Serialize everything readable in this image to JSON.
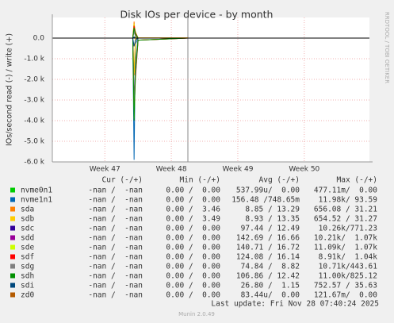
{
  "chart_data": {
    "type": "line",
    "title": "Disk IOs per device - by month",
    "y_label": "IOs/second read (-) / write (+)",
    "side_label": "RRDTOOL / TOBI OETIKER",
    "x": [
      47.42,
      47.44,
      47.46,
      47.5,
      48.25
    ],
    "xlim": [
      46.21,
      50.98
    ],
    "xticks": [
      {
        "value": 47,
        "label": "Week 47"
      },
      {
        "value": 48,
        "label": "Week 48"
      },
      {
        "value": 49,
        "label": "Week 49"
      },
      {
        "value": 50,
        "label": "Week 50"
      }
    ],
    "ylim": [
      -6000,
      1000
    ],
    "yticks": [
      {
        "value": 0,
        "label": "0.0"
      },
      {
        "value": -1000,
        "label": "-1.0 k"
      },
      {
        "value": -2000,
        "label": "-2.0 k"
      },
      {
        "value": -3000,
        "label": "-3.0 k"
      },
      {
        "value": -4000,
        "label": "-4.0 k"
      },
      {
        "value": -5000,
        "label": "-5.0 k"
      },
      {
        "value": -6000,
        "label": "-6.0 k"
      }
    ],
    "grid": true,
    "columns": [
      "Cur (-/+)",
      "Min (-/+)",
      "Avg (-/+)",
      "Max (-/+)"
    ],
    "series": [
      {
        "name": "nvme0n1",
        "color": "#00cc00",
        "values": [
          0,
          0,
          0,
          0,
          0
        ],
        "write": [
          0,
          0,
          0,
          0,
          0
        ],
        "stats": [
          "-nan /  -nan",
          "0.00 /  0.00",
          "537.99u/  0.00",
          "477.11m/  0.00"
        ]
      },
      {
        "name": "nvme1n1",
        "color": "#0066b3",
        "values": [
          0,
          -5900,
          -300,
          0,
          0
        ],
        "write": [
          0,
          60,
          20,
          0,
          0
        ],
        "stats": [
          "-nan /  -nan",
          "0.00 /  0.00",
          "156.48 /748.65m",
          "11.98k/ 93.59"
        ]
      },
      {
        "name": "sda",
        "color": "#ff8000",
        "values": [
          0,
          -1800,
          -50,
          0,
          0
        ],
        "write": [
          0,
          800,
          30,
          10,
          10
        ],
        "stats": [
          "-nan /  -nan",
          "0.00 /  3.46",
          "8.85 / 13.29",
          "656.08 / 31.21"
        ]
      },
      {
        "name": "sdb",
        "color": "#ffcc00",
        "values": [
          0,
          -1700,
          -50,
          0,
          0
        ],
        "write": [
          0,
          700,
          30,
          10,
          10
        ],
        "stats": [
          "-nan /  -nan",
          "0.00 /  3.49",
          "8.93 / 13.35",
          "654.52 / 31.27"
        ]
      },
      {
        "name": "sdc",
        "color": "#330099",
        "values": [
          0,
          -3000,
          -1500,
          0,
          0
        ],
        "write": [
          0,
          500,
          200,
          0,
          0
        ],
        "stats": [
          "-nan /  -nan",
          "0.00 /  0.00",
          "97.44 / 12.49",
          "10.26k/771.23"
        ]
      },
      {
        "name": "sdd",
        "color": "#990099",
        "values": [
          0,
          -3600,
          -2000,
          -100,
          0
        ],
        "write": [
          0,
          600,
          300,
          0,
          0
        ],
        "stats": [
          "-nan /  -nan",
          "0.00 /  0.00",
          "142.69 / 16.66",
          "10.21k/  1.07k"
        ]
      },
      {
        "name": "sde",
        "color": "#ccff00",
        "values": [
          0,
          -3900,
          -1800,
          -100,
          0
        ],
        "write": [
          0,
          650,
          300,
          0,
          0
        ],
        "stats": [
          "-nan /  -nan",
          "0.00 /  0.00",
          "140.71 / 16.72",
          "11.09k/  1.07k"
        ]
      },
      {
        "name": "sdf",
        "color": "#ff0000",
        "values": [
          0,
          -3500,
          -1700,
          -100,
          0
        ],
        "write": [
          0,
          600,
          250,
          0,
          0
        ],
        "stats": [
          "-nan /  -nan",
          "0.00 /  0.00",
          "124.08 / 16.14",
          "8.91k/  1.04k"
        ]
      },
      {
        "name": "sdg",
        "color": "#808080",
        "values": [
          0,
          -3400,
          -1200,
          0,
          0
        ],
        "write": [
          0,
          300,
          100,
          0,
          0
        ],
        "stats": [
          "-nan /  -nan",
          "0.00 /  0.00",
          "74.84 /  8.82",
          "10.71k/443.61"
        ]
      },
      {
        "name": "sdh",
        "color": "#008f00",
        "values": [
          0,
          -4000,
          -1600,
          -100,
          0
        ],
        "write": [
          0,
          500,
          200,
          0,
          0
        ],
        "stats": [
          "-nan /  -nan",
          "0.00 /  0.00",
          "106.86 / 12.42",
          "11.00k/825.12"
        ]
      },
      {
        "name": "sdi",
        "color": "#00487d",
        "values": [
          0,
          -400,
          -100,
          0,
          0
        ],
        "write": [
          0,
          30,
          10,
          0,
          0
        ],
        "stats": [
          "-nan /  -nan",
          "0.00 /  0.00",
          "26.80 /  1.15",
          "752.57 / 35.63"
        ]
      },
      {
        "name": "zd0",
        "color": "#b35a00",
        "values": [
          0,
          0,
          0,
          0,
          0
        ],
        "write": [
          0,
          0,
          0,
          0,
          0
        ],
        "stats": [
          "-nan /  -nan",
          "0.00 /  0.00",
          "83.44u/  0.00",
          "121.67m/  0.00"
        ]
      }
    ],
    "last_update": "Last update: Fri Nov 28 07:40:24 2025",
    "footer": "Munin 2.0.49"
  }
}
